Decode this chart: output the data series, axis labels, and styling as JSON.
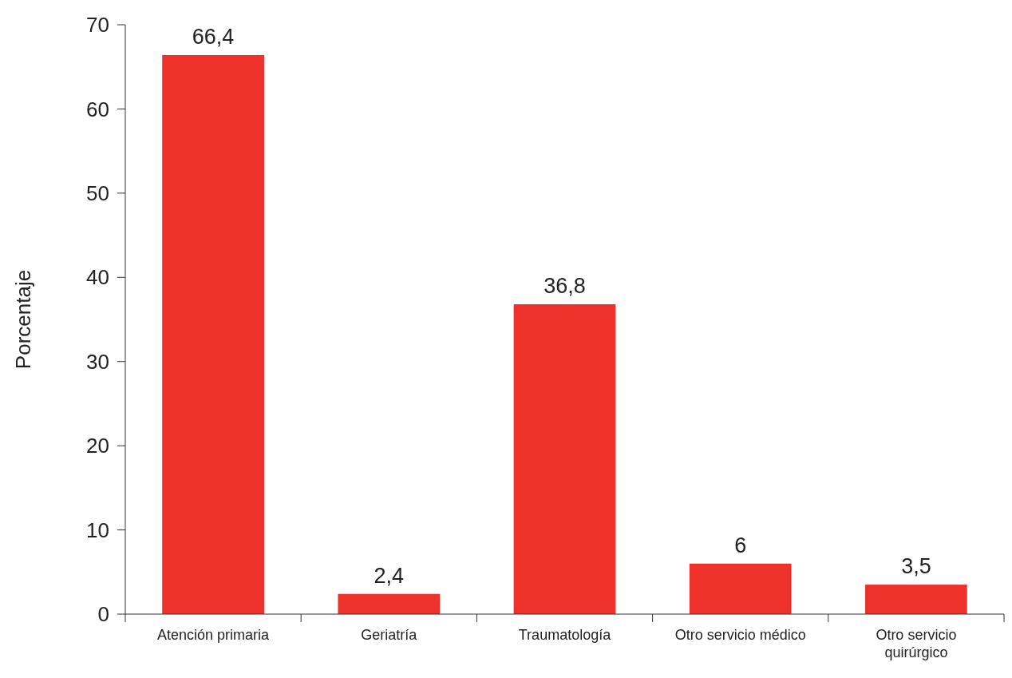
{
  "chart_data": {
    "type": "bar",
    "ylabel": "Porcentaje",
    "categories": [
      "Atención primaria",
      "Geriatría",
      "Traumatología",
      "Otro servicio médico",
      "Otro servicio quirúrgico"
    ],
    "values": [
      66.4,
      2.4,
      36.8,
      6,
      3.5
    ],
    "value_labels": [
      "66,4",
      "2,4",
      "36,8",
      "6",
      "3,5"
    ],
    "color": "#ee322b",
    "ylim": [
      0,
      70
    ],
    "yticks": [
      0,
      10,
      20,
      30,
      40,
      50,
      60,
      70
    ],
    "grid": false
  }
}
